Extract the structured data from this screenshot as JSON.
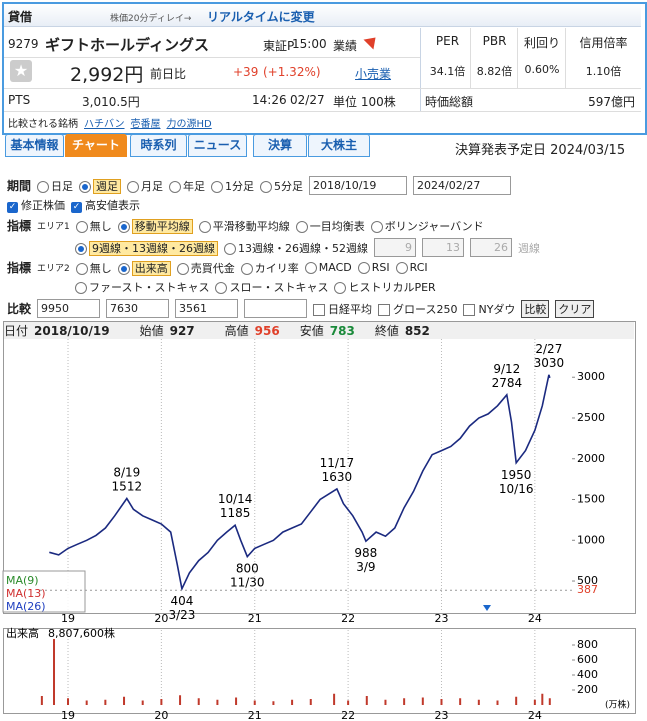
{
  "header": {
    "badge": "貸借",
    "delay": "株価20分ディレイ→",
    "realtime": "リアルタイムに変更"
  },
  "quote": {
    "code": "9279",
    "name": "ギフトホールディングス",
    "market": "東証P",
    "time": "15:00",
    "price": "2,992円",
    "prev_label": "前日比",
    "change": "+39",
    "change_pct": "(+1.32%)",
    "pts_label": "PTS",
    "pts_price": "3,010.5円",
    "pts_time": "14:26",
    "pts_date": "02/27",
    "compare_label": "比較される銘柄",
    "compare": [
      "ハチバン",
      "壱番屋",
      "力の源HD"
    ]
  },
  "sector": {
    "label": "業績",
    "value": "小売業",
    "unit": "単位 100株"
  },
  "metrics": {
    "headers": [
      "PER",
      "PBR",
      "利回り",
      "信用倍率"
    ],
    "values": [
      "34.1倍",
      "8.82倍",
      "0.60%",
      "1.10倍"
    ],
    "market_cap_label": "時価総額",
    "market_cap": "597億円"
  },
  "tabs": {
    "items": [
      "基本情報",
      "チャート",
      "時系列",
      "ニュース",
      "決算",
      "大株主"
    ],
    "active": 1
  },
  "earnings": {
    "label": "決算発表予定日",
    "date": "2024/03/15"
  },
  "controls": {
    "period": {
      "label": "期間",
      "options": [
        "日足",
        "週足",
        "月足",
        "年足",
        "1分足",
        "5分足"
      ],
      "selected": 1,
      "from": "2018/10/19",
      "to": "2024/02/27"
    },
    "checks": [
      "修正株価",
      "高安値表示"
    ],
    "area1": {
      "label": "指標",
      "area": "エリア1",
      "options": [
        "無し",
        "移動平均線",
        "平滑移動平均線",
        "一目均衡表",
        "ボリンジャーバンド"
      ],
      "selected": 1,
      "sub": [
        "9週線・13週線・26週線",
        "13週線・26週線・52週線"
      ],
      "sub_selected": 0,
      "custom": [
        "9",
        "13",
        "26"
      ],
      "custom_unit": "週線"
    },
    "area2": {
      "label": "指標",
      "area": "エリア2",
      "options": [
        "無し",
        "出来高",
        "売買代金",
        "カイリ率",
        "MACD",
        "RSI",
        "RCI"
      ],
      "selected": 1,
      "sub": [
        "ファースト・ストキャス",
        "スロー・ストキャス",
        "ヒストリカルPER"
      ]
    },
    "compare": {
      "label": "比較",
      "codes": [
        "9950",
        "7630",
        "3561"
      ],
      "checks": [
        "日経平均",
        "グロース250",
        "NYダウ"
      ],
      "buttons": [
        "比較",
        "クリア"
      ]
    }
  },
  "ohlc_info": [
    "日付",
    "2018/10/19",
    "始値",
    "927",
    "高値",
    "956",
    "安値",
    "783",
    "終値",
    "852"
  ],
  "chart_data": [
    {
      "type": "line",
      "color": "#1b2a80",
      "ylim": [
        120,
        3420
      ],
      "yticks": [
        500,
        1000,
        1500,
        2000,
        2500,
        3000
      ],
      "xlim": [
        2018.7,
        2024.43
      ],
      "xticks": [
        {
          "value": 2019,
          "label": "19"
        },
        {
          "value": 2020,
          "label": "20"
        },
        {
          "value": 2021,
          "label": "21"
        },
        {
          "value": 2022,
          "label": "22"
        },
        {
          "value": 2023,
          "label": "23"
        },
        {
          "value": 2024,
          "label": "24"
        }
      ],
      "x": [
        2018.8,
        2018.9,
        2019.0,
        2019.1,
        2019.2,
        2019.3,
        2019.4,
        2019.5,
        2019.63,
        2019.7,
        2019.8,
        2019.9,
        2020.0,
        2020.1,
        2020.17,
        2020.22,
        2020.3,
        2020.4,
        2020.5,
        2020.6,
        2020.7,
        2020.79,
        2020.85,
        2020.92,
        2021.0,
        2021.1,
        2021.2,
        2021.3,
        2021.4,
        2021.5,
        2021.6,
        2021.7,
        2021.88,
        2021.95,
        2022.05,
        2022.15,
        2022.19,
        2022.3,
        2022.4,
        2022.5,
        2022.6,
        2022.7,
        2022.8,
        2022.9,
        2023.0,
        2023.1,
        2023.2,
        2023.3,
        2023.4,
        2023.5,
        2023.6,
        2023.7,
        2023.75,
        2023.8,
        2023.9,
        2024.0,
        2024.08,
        2024.15,
        2024.16
      ],
      "values": [
        852,
        820,
        900,
        950,
        1000,
        1060,
        1150,
        1300,
        1512,
        1380,
        1300,
        1250,
        1200,
        1100,
        700,
        404,
        600,
        750,
        850,
        1000,
        1100,
        1185,
        1000,
        800,
        900,
        950,
        1000,
        1100,
        1150,
        1200,
        1350,
        1500,
        1630,
        1450,
        1300,
        1100,
        988,
        1100,
        1050,
        1150,
        1400,
        1600,
        1850,
        2050,
        2100,
        2150,
        2250,
        2400,
        2500,
        2550,
        2650,
        2784,
        2450,
        1950,
        2100,
        2350,
        2650,
        3030,
        2992
      ],
      "high_labels": [
        {
          "x": 2019.63,
          "date": "8/19",
          "value": 1512
        },
        {
          "x": 2020.79,
          "date": "10/14",
          "value": 1185
        },
        {
          "x": 2021.88,
          "date": "11/17",
          "value": 1630
        },
        {
          "x": 2023.7,
          "date": "9/12",
          "value": 2784
        },
        {
          "x": 2024.15,
          "date": "2/27",
          "value": 3030
        }
      ],
      "low_labels": [
        {
          "x": 2020.22,
          "date": "3/23",
          "value": 404
        },
        {
          "x": 2020.92,
          "date": "11/30",
          "value": 800
        },
        {
          "x": 2022.19,
          "date": "3/9",
          "value": 988
        },
        {
          "x": 2023.8,
          "date": "10/16",
          "value": 1950
        }
      ],
      "ma_labels": [
        {
          "name": "MA(9)",
          "color": "#2a8a2a"
        },
        {
          "name": "MA(13)",
          "color": "#d03030"
        },
        {
          "name": "MA(26)",
          "color": "#2040c0"
        }
      ],
      "reference": 387
    },
    {
      "type": "bar",
      "title": "出来高",
      "value_text": "8,807,600株",
      "unit": "(万株)",
      "color": "#c0392b",
      "ylim": [
        0,
        1000
      ],
      "yticks": [
        200,
        400,
        600,
        800
      ],
      "xlim": [
        2018.7,
        2024.43
      ],
      "xticks": [
        {
          "value": 2019,
          "label": "19"
        },
        {
          "value": 2020,
          "label": "20"
        },
        {
          "value": 2021,
          "label": "21"
        },
        {
          "value": 2022,
          "label": "22"
        },
        {
          "value": 2023,
          "label": "23"
        },
        {
          "value": 2024,
          "label": "24"
        }
      ],
      "x": [
        2018.72,
        2018.85,
        2019.0,
        2019.2,
        2019.4,
        2019.6,
        2019.8,
        2020.0,
        2020.2,
        2020.4,
        2020.6,
        2020.8,
        2021.0,
        2021.2,
        2021.4,
        2021.6,
        2021.85,
        2022.0,
        2022.2,
        2022.4,
        2022.6,
        2022.8,
        2023.0,
        2023.2,
        2023.4,
        2023.6,
        2023.8,
        2024.0,
        2024.08,
        2024.16
      ],
      "values": [
        120,
        880.76,
        90,
        60,
        70,
        110,
        60,
        80,
        130,
        90,
        70,
        100,
        60,
        50,
        70,
        80,
        150,
        60,
        120,
        70,
        90,
        100,
        80,
        90,
        70,
        60,
        110,
        70,
        150,
        90
      ]
    }
  ]
}
